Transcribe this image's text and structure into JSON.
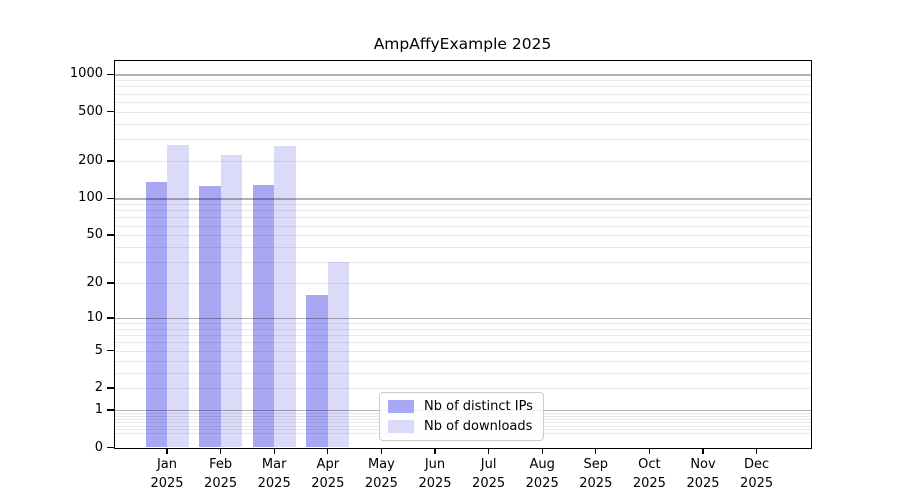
{
  "chart_data": {
    "type": "bar",
    "title": "AmpAffyExample 2025",
    "scale": "log1p",
    "grid": "both (major darker, minor lighter), drawn over bars",
    "months": [
      "Jan",
      "Feb",
      "Mar",
      "Apr",
      "May",
      "Jun",
      "Jul",
      "Aug",
      "Sep",
      "Oct",
      "Nov",
      "Dec"
    ],
    "year": "2025",
    "series": [
      {
        "name": "Nb of distinct IPs",
        "color": "#a7a7f4",
        "values": [
          135,
          126,
          128,
          16,
          0,
          0,
          0,
          0,
          0,
          0,
          0,
          0
        ]
      },
      {
        "name": "Nb of downloads",
        "color": "#dbdbf9",
        "values": [
          270,
          225,
          265,
          30,
          0,
          0,
          0,
          0,
          0,
          0,
          0,
          0
        ]
      }
    ],
    "y_axis": {
      "tick_labels": [
        "0",
        "1",
        "2",
        "5",
        "10",
        "20",
        "50",
        "100",
        "200",
        "500",
        "1000"
      ],
      "tick_values": [
        0,
        1,
        2,
        5,
        10,
        20,
        50,
        100,
        200,
        500,
        1000
      ],
      "major_gridlines": [
        1,
        10,
        100,
        1000
      ],
      "minor_gridlines": [
        0.3,
        0.4,
        0.5,
        0.6,
        0.7,
        0.8,
        0.9,
        2,
        3,
        4,
        5,
        6,
        7,
        8,
        9,
        20,
        30,
        40,
        50,
        60,
        70,
        80,
        90,
        200,
        300,
        400,
        500,
        600,
        700,
        800,
        900
      ],
      "ylim": [
        0,
        1270
      ]
    },
    "xlabel": "",
    "ylabel": "",
    "legend": {
      "position": "inside lower-center",
      "border_color": "#cccccc",
      "items": [
        "Nb of distinct IPs",
        "Nb of downloads"
      ]
    },
    "colors": {
      "major_grid": "rgba(0,0,0,0.30)",
      "minor_grid": "rgba(0,0,0,0.085)",
      "spine": "#000000",
      "background": "#ffffff"
    }
  }
}
